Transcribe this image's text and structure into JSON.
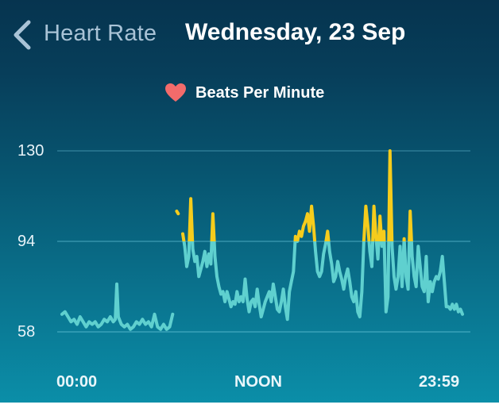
{
  "header": {
    "back_label": "Heart Rate",
    "title": "Wednesday, 23 Sep"
  },
  "legend": {
    "icon": "heart-icon",
    "label": "Beats Per Minute",
    "color": "#f26b6b"
  },
  "colors": {
    "normal_line": "#5fd0cf",
    "elevated_line": "#f6cc1c",
    "gridline": "#4aa9c0"
  },
  "chart_data": {
    "type": "line",
    "title": "Beats Per Minute",
    "xlabel": "",
    "ylabel": "",
    "ylim": [
      58,
      130
    ],
    "yticks": [
      130,
      94,
      58
    ],
    "xticks": [
      "00:00",
      "NOON",
      "23:59"
    ],
    "threshold": 94,
    "grid": true,
    "legend_position": "top",
    "series": [
      {
        "name": "Beats Per Minute",
        "segments": [
          [
            [
              0,
              65
            ],
            [
              0.3,
              66
            ],
            [
              0.6,
              64
            ],
            [
              0.9,
              62
            ],
            [
              1.2,
              63
            ],
            [
              1.5,
              61
            ],
            [
              1.8,
              64
            ],
            [
              2.1,
              62
            ],
            [
              2.4,
              60
            ],
            [
              2.7,
              62
            ],
            [
              3.0,
              61
            ],
            [
              3.3,
              62
            ],
            [
              3.6,
              60
            ],
            [
              3.9,
              61
            ],
            [
              4.2,
              63
            ],
            [
              4.5,
              62
            ],
            [
              4.8,
              64
            ],
            [
              5.1,
              62
            ],
            [
              5.3,
              63
            ],
            [
              5.45,
              77
            ],
            [
              5.6,
              64
            ],
            [
              5.9,
              61
            ],
            [
              6.2,
              60
            ],
            [
              6.5,
              61
            ],
            [
              6.8,
              59
            ],
            [
              7.1,
              60
            ],
            [
              7.4,
              62
            ],
            [
              7.7,
              61
            ],
            [
              8.0,
              63
            ],
            [
              8.3,
              61
            ],
            [
              8.6,
              62
            ],
            [
              8.9,
              60
            ],
            [
              9.2,
              65
            ],
            [
              9.5,
              60
            ],
            [
              9.8,
              59
            ],
            [
              10.1,
              61
            ],
            [
              10.4,
              59
            ],
            [
              10.7,
              60
            ],
            [
              11.0,
              65
            ]
          ],
          [
            [
              11.4,
              106
            ],
            [
              11.55,
              105
            ]
          ],
          [
            [
              12.0,
              97
            ],
            [
              12.2,
              92
            ],
            [
              12.4,
              84
            ],
            [
              12.6,
              88
            ],
            [
              12.8,
              111
            ],
            [
              13.0,
              91
            ],
            [
              13.2,
              86
            ],
            [
              13.4,
              88
            ],
            [
              13.6,
              80
            ],
            [
              13.8,
              83
            ],
            [
              14.0,
              86
            ],
            [
              14.2,
              90
            ],
            [
              14.4,
              84
            ],
            [
              14.6,
              89
            ],
            [
              14.8,
              85
            ],
            [
              15.0,
              105
            ],
            [
              15.2,
              88
            ],
            [
              15.4,
              80
            ],
            [
              15.6,
              76
            ],
            [
              15.8,
              73
            ],
            [
              16.0,
              74
            ],
            [
              16.2,
              70
            ],
            [
              16.4,
              74
            ],
            [
              16.6,
              71
            ],
            [
              16.8,
              68
            ],
            [
              17.0,
              70
            ],
            [
              17.2,
              69
            ],
            [
              17.4,
              74
            ],
            [
              17.6,
              70
            ],
            [
              17.8,
              72
            ],
            [
              18.0,
              70
            ],
            [
              18.2,
              79
            ],
            [
              18.4,
              71
            ],
            [
              18.6,
              66
            ],
            [
              18.8,
              70
            ],
            [
              19.0,
              71
            ],
            [
              19.2,
              68
            ],
            [
              19.4,
              75
            ],
            [
              19.6,
              69
            ],
            [
              19.8,
              64
            ],
            [
              20.0,
              67
            ],
            [
              20.2,
              70
            ],
            [
              20.4,
              72
            ],
            [
              20.6,
              74
            ],
            [
              20.8,
              70
            ],
            [
              21.0,
              77
            ],
            [
              21.2,
              72
            ],
            [
              21.4,
              67
            ],
            [
              21.6,
              66
            ],
            [
              21.8,
              70
            ],
            [
              22.0,
              75
            ],
            [
              22.2,
              68
            ],
            [
              22.4,
              63
            ],
            [
              22.6,
              74
            ],
            [
              22.8,
              78
            ],
            [
              23.0,
              82
            ],
            [
              23.2,
              96
            ],
            [
              23.4,
              94
            ],
            [
              23.6,
              98
            ],
            [
              23.8,
              96
            ],
            [
              24.0,
              100
            ],
            [
              24.2,
              102
            ],
            [
              24.4,
              105
            ],
            [
              24.6,
              98
            ],
            [
              24.8,
              108
            ],
            [
              25.0,
              100
            ],
            [
              25.2,
              90
            ],
            [
              25.4,
              82
            ],
            [
              25.6,
              80
            ],
            [
              25.8,
              82
            ],
            [
              26.0,
              89
            ],
            [
              26.2,
              93
            ],
            [
              26.4,
              98
            ],
            [
              26.6,
              90
            ],
            [
              26.8,
              85
            ],
            [
              27.0,
              78
            ],
            [
              27.2,
              80
            ],
            [
              27.4,
              86
            ],
            [
              27.6,
              82
            ],
            [
              27.8,
              79
            ],
            [
              28.0,
              75
            ],
            [
              28.2,
              80
            ],
            [
              28.4,
              83
            ],
            [
              28.6,
              78
            ],
            [
              28.8,
              72
            ],
            [
              29.0,
              70
            ],
            [
              29.2,
              74
            ],
            [
              29.4,
              66
            ],
            [
              29.6,
              64
            ],
            [
              29.8,
              74
            ],
            [
              30.0,
              94
            ],
            [
              30.2,
              108
            ],
            [
              30.4,
              100
            ],
            [
              30.6,
              90
            ],
            [
              30.8,
              84
            ],
            [
              31.0,
              108
            ],
            [
              31.2,
              96
            ],
            [
              31.4,
              87
            ],
            [
              31.6,
              104
            ],
            [
              31.8,
              92
            ],
            [
              32.0,
              98
            ],
            [
              32.2,
              66
            ],
            [
              32.4,
              72
            ],
            [
              32.6,
              130
            ],
            [
              32.8,
              92
            ],
            [
              33.0,
              80
            ],
            [
              33.2,
              75
            ],
            [
              33.4,
              80
            ],
            [
              33.6,
              92
            ],
            [
              33.8,
              76
            ],
            [
              34.0,
              95
            ],
            [
              34.2,
              80
            ],
            [
              34.4,
              75
            ],
            [
              34.6,
              106
            ],
            [
              34.8,
              88
            ],
            [
              35.0,
              80
            ],
            [
              35.2,
              76
            ],
            [
              35.4,
              92
            ],
            [
              35.6,
              84
            ],
            [
              35.8,
              76
            ],
            [
              36.0,
              74
            ],
            [
              36.2,
              88
            ],
            [
              36.4,
              70
            ],
            [
              36.6,
              78
            ],
            [
              36.8,
              74
            ],
            [
              37.0,
              78
            ],
            [
              37.2,
              80
            ],
            [
              37.4,
              79
            ],
            [
              37.6,
              82
            ],
            [
              37.8,
              88
            ],
            [
              38.0,
              78
            ],
            [
              38.2,
              68
            ],
            [
              38.4,
              68
            ],
            [
              38.6,
              67
            ],
            [
              38.8,
              69
            ],
            [
              39.0,
              67
            ],
            [
              39.2,
              69
            ],
            [
              39.4,
              66
            ],
            [
              39.6,
              67
            ],
            [
              39.8,
              65
            ]
          ]
        ]
      }
    ]
  }
}
